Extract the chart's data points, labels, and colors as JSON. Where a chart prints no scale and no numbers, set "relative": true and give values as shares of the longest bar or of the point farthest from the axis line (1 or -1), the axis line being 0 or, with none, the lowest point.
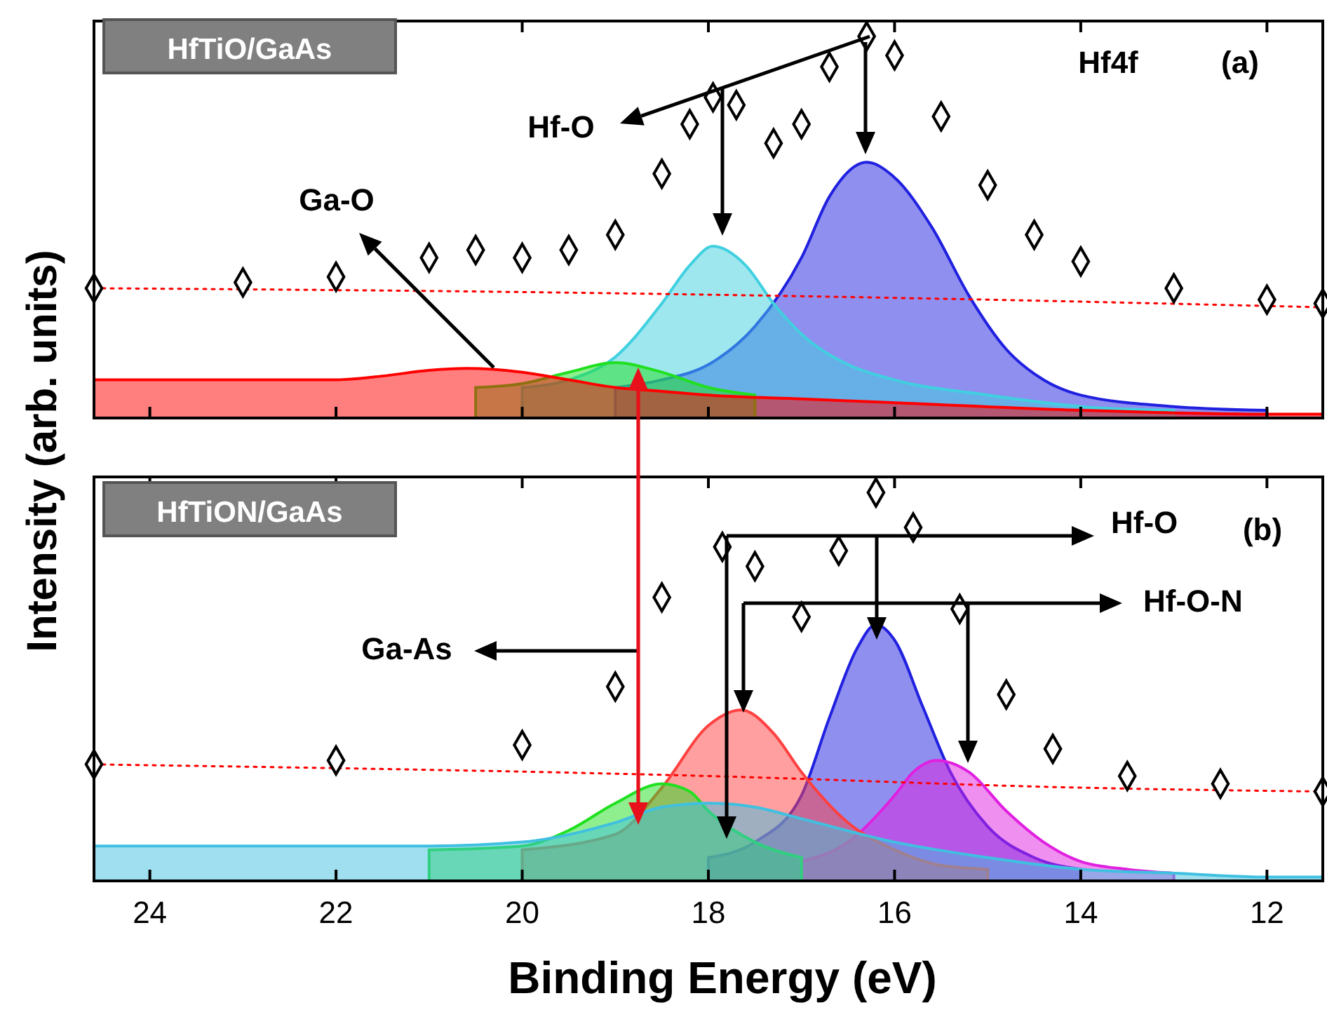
{
  "chart_data": [
    {
      "type": "area",
      "relative": true,
      "tick_labels": false,
      "ylabel": "Intensity (arb. units)",
      "xlim": [
        24.6,
        11.4
      ],
      "xticks": [
        24,
        22,
        20,
        18,
        16,
        14,
        12
      ],
      "annotations": [
        "HfTiO/GaAs",
        "Hf4f",
        "(a)",
        "Hf-O",
        "Ga-O"
      ],
      "series": [
        {
          "color": "#2020e0",
          "x": [
            19,
            18.5,
            18,
            17.5,
            17,
            16.7,
            16.3,
            16,
            15.6,
            15.2,
            14.8,
            14.4,
            14,
            13,
            12
          ],
          "values": [
            0.08,
            0.1,
            0.14,
            0.24,
            0.42,
            0.58,
            0.67,
            0.63,
            0.5,
            0.32,
            0.18,
            0.1,
            0.06,
            0.03,
            0.02
          ]
        },
        {
          "color": "#40d0e0",
          "x": [
            20,
            19.5,
            19,
            18.5,
            18.2,
            17.95,
            17.6,
            17.3,
            17,
            16.5,
            16,
            15,
            14,
            13
          ],
          "values": [
            0.08,
            0.1,
            0.16,
            0.3,
            0.4,
            0.45,
            0.4,
            0.3,
            0.22,
            0.14,
            0.1,
            0.06,
            0.03,
            0.02
          ]
        },
        {
          "color": "#20e020",
          "x": [
            20.5,
            20,
            19.5,
            19,
            18.5,
            18,
            17.5
          ],
          "values": [
            0.08,
            0.09,
            0.12,
            0.145,
            0.12,
            0.08,
            0.06
          ]
        },
        {
          "color": "#ff0000",
          "x": [
            24.6,
            22,
            21.5,
            21,
            20.6,
            20,
            19.5,
            19,
            18.5,
            18,
            17,
            16,
            14,
            12,
            11.4
          ],
          "values": [
            0.1,
            0.1,
            0.11,
            0.125,
            0.13,
            0.12,
            0.1,
            0.08,
            0.07,
            0.06,
            0.05,
            0.04,
            0.02,
            0.01,
            0.01
          ]
        },
        {
          "type": "line",
          "line_style": "dotted",
          "color": "#ff0000",
          "x": [
            24.6,
            20,
            15,
            11.4
          ],
          "values": [
            0.34,
            0.33,
            0.31,
            0.29
          ]
        },
        {
          "type": "scatter",
          "marker": "diamond",
          "color": "#000000",
          "x": [
            24.6,
            23,
            22,
            21,
            20.5,
            20,
            19.5,
            19,
            18.5,
            18.2,
            17.95,
            17.7,
            17.3,
            17,
            16.7,
            16.3,
            16,
            15.5,
            15,
            14.5,
            14,
            13,
            12,
            11.4
          ],
          "values": [
            0.34,
            0.355,
            0.37,
            0.42,
            0.44,
            0.42,
            0.44,
            0.48,
            0.64,
            0.77,
            0.84,
            0.82,
            0.72,
            0.77,
            0.92,
            1,
            0.95,
            0.79,
            0.61,
            0.48,
            0.41,
            0.34,
            0.31,
            0.3
          ]
        }
      ]
    },
    {
      "type": "area",
      "relative": true,
      "tick_labels": "x",
      "xlabel": "Binding Energy (eV)",
      "xlim": [
        24.6,
        11.4
      ],
      "xticks": [
        24,
        22,
        20,
        18,
        16,
        14,
        12
      ],
      "annotations": [
        "HfTiON/GaAs",
        "(b)",
        "Hf-O",
        "Hf-O-N",
        "Ga-As"
      ],
      "series": [
        {
          "color": "#2020e0",
          "x": [
            18,
            17.5,
            17,
            16.7,
            16.4,
            16.2,
            16,
            15.7,
            15.4,
            15,
            14.5,
            14
          ],
          "values": [
            0.06,
            0.1,
            0.22,
            0.42,
            0.6,
            0.66,
            0.62,
            0.45,
            0.28,
            0.14,
            0.06,
            0.03
          ]
        },
        {
          "color": "#e020e0",
          "x": [
            17,
            16.5,
            16,
            15.8,
            15.55,
            15.2,
            14.8,
            14.4,
            14,
            13.5,
            13
          ],
          "values": [
            0.05,
            0.1,
            0.22,
            0.28,
            0.31,
            0.28,
            0.18,
            0.1,
            0.05,
            0.03,
            0.02
          ]
        },
        {
          "color": "#ff4040",
          "x": [
            20,
            19,
            18.5,
            18,
            17.65,
            17.3,
            17,
            16.5,
            16,
            15.5,
            15
          ],
          "values": [
            0.08,
            0.12,
            0.24,
            0.4,
            0.44,
            0.38,
            0.28,
            0.15,
            0.08,
            0.04,
            0.03
          ]
        },
        {
          "color": "#20e020",
          "x": [
            21,
            20,
            19.5,
            19,
            18.5,
            18.2,
            18,
            17.5,
            17
          ],
          "values": [
            0.08,
            0.09,
            0.13,
            0.2,
            0.25,
            0.23,
            0.18,
            0.1,
            0.06
          ]
        },
        {
          "color": "#40c0e0",
          "x": [
            24.6,
            22,
            21,
            20,
            19,
            18.5,
            18,
            17.5,
            17,
            16,
            15,
            14,
            13,
            12,
            11.4
          ],
          "values": [
            0.09,
            0.09,
            0.09,
            0.1,
            0.15,
            0.19,
            0.2,
            0.19,
            0.16,
            0.1,
            0.06,
            0.03,
            0.02,
            0.01,
            0.01
          ]
        },
        {
          "type": "line",
          "line_style": "dotted",
          "color": "#ff0000",
          "x": [
            24.6,
            18,
            14,
            11.4
          ],
          "values": [
            0.3,
            0.27,
            0.24,
            0.23
          ]
        },
        {
          "type": "scatter",
          "marker": "diamond",
          "color": "#000000",
          "x": [
            24.6,
            22,
            20,
            19,
            18.5,
            17.85,
            17.5,
            17,
            16.6,
            16.2,
            15.8,
            15.3,
            14.8,
            14.3,
            13.5,
            12.5,
            11.4
          ],
          "values": [
            0.3,
            0.31,
            0.35,
            0.5,
            0.73,
            0.86,
            0.81,
            0.68,
            0.85,
            1,
            0.91,
            0.7,
            0.48,
            0.34,
            0.27,
            0.25,
            0.23
          ]
        }
      ]
    }
  ]
}
